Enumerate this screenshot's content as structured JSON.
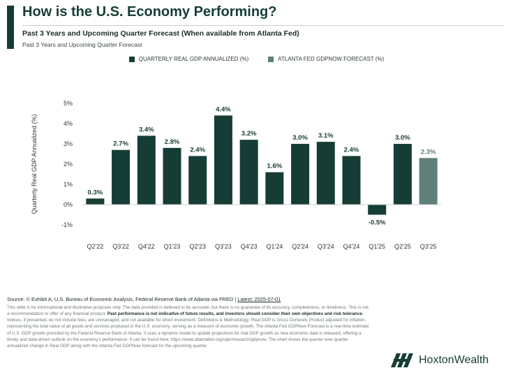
{
  "header": {
    "title": "How is the U.S. Economy Performing?",
    "subtitle": "Past 3 Years and Upcoming Quarter Forecast (When available from Atlanta Fed)",
    "subsubtitle": "Past 3 Years and Upcoming Quarter Forecast"
  },
  "legend": {
    "actual_label": "QUARTERLY REAL GDP ANNUALIZED (%)",
    "forecast_label": "ATLANTA FED GDPNOW FORECAST (%)"
  },
  "colors": {
    "actual": "#163d35",
    "forecast": "#5e7f7a",
    "accent": "#163d35"
  },
  "chart_data": {
    "type": "bar",
    "ylabel": "Quarterly Real GDP Annualized (%)",
    "ylim": [
      -1,
      5
    ],
    "yticks": [
      "-1%",
      "0%",
      "1%",
      "2%",
      "3%",
      "4%",
      "5%"
    ],
    "grid": false,
    "legend_placement": "top",
    "categories": [
      "Q2'22",
      "Q3'22",
      "Q4'22",
      "Q1'23",
      "Q2'23",
      "Q3'23",
      "Q4'23",
      "Q1'24",
      "Q2'24",
      "Q3'24",
      "Q4'24",
      "Q1'25",
      "Q2'25",
      "Q3'25"
    ],
    "series": [
      {
        "name": "QUARTERLY REAL GDP ANNUALIZED (%)",
        "values": [
          0.3,
          2.7,
          3.4,
          2.8,
          2.4,
          4.4,
          3.2,
          1.6,
          3.0,
          3.1,
          2.4,
          -0.5,
          3.0,
          null
        ]
      },
      {
        "name": "ATLANTA FED GDPNOW FORECAST (%)",
        "values": [
          null,
          null,
          null,
          null,
          null,
          null,
          null,
          null,
          null,
          null,
          null,
          null,
          null,
          2.3
        ]
      }
    ],
    "data_labels": [
      "0.3%",
      "2.7%",
      "3.4%",
      "2.8%",
      "2.4%",
      "4.4%",
      "3.2%",
      "1.6%",
      "3.0%",
      "3.1%",
      "2.4%",
      "-0.5%",
      "3.0%",
      "2.3%"
    ]
  },
  "footer": {
    "source_text": "Source: © Exhibit A, U.S. Bureau of Economic Analysis, Federal Reserve Bank of Atlanta via FRED | ",
    "latest_text": "Latest: 2025-07-01",
    "disclaimer_1": "This slide is for informational and illustrative purposes only. The data provided is believed to be accurate, but there is no guarantee of its accuracy, completeness, or timeliness. This is not a recommendation or offer of any financial product. ",
    "disclaimer_bold": "Past performance is not indicative of future results, and investors should consider their own objectives and risk tolerance.",
    "disclaimer_2": " Indices, if presented, do not include fees, are unmanaged, and not available for direct investment. Definitions & Methodology: Real GDP is Gross Domestic Product adjusted for inflation, representing the total value of all goods and services produced in the U.S. economy, serving as a measure of economic growth. The Atlanta Fed GDPNow Forecast is a real-time estimate of U.S. GDP growth provided by the Federal Reserve Bank of Atlanta. It uses a dynamic model to update projections for real GDP growth as new economic data is released, offering a timely and data-driven outlook on the economy's performance. It can be found here: https://www.atlantafed.org/cqer/research/gdpnow. The chart shows the quarter over quarter annualized change in Real GDP along with the Atlanta Fed GDPNow forecast for the upcoming quarter.",
    "brand": "HoxtonWealth",
    "logo_icon": "hoxton-wealth-logo-icon"
  }
}
